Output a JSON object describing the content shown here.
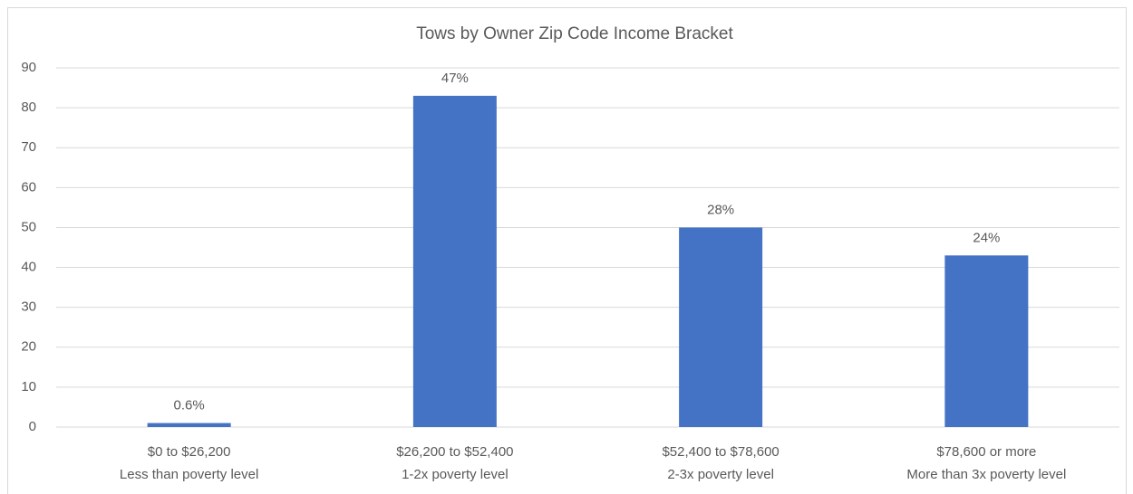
{
  "chart_data": {
    "type": "bar",
    "title": "Tows by Owner Zip Code Income Bracket",
    "categories": [
      [
        "$0 to $26,200",
        "Less than poverty level"
      ],
      [
        "$26,200 to $52,400",
        "1-2x poverty level"
      ],
      [
        "$52,400 to $78,600",
        "2-3x poverty level"
      ],
      [
        "$78,600 or more",
        "More than 3x poverty level"
      ]
    ],
    "values": [
      1,
      83,
      50,
      43
    ],
    "annotations": [
      "0.6%",
      "47%",
      "28%",
      "24%"
    ],
    "color": "#4472c4",
    "ylim": [
      0,
      90
    ],
    "yticks": [
      0,
      10,
      20,
      30,
      40,
      50,
      60,
      70,
      80,
      90
    ],
    "grid": true
  }
}
